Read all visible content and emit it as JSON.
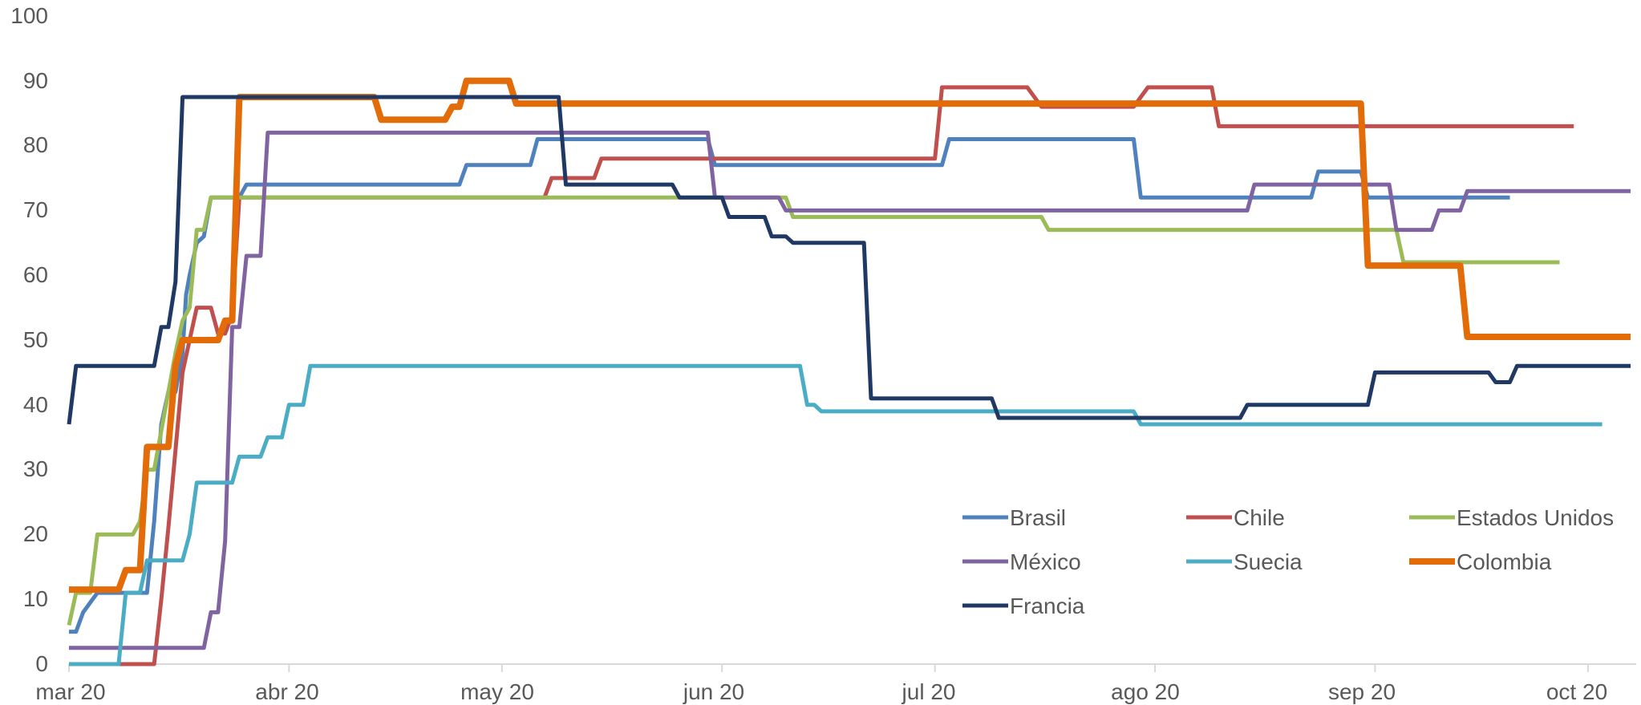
{
  "chart_data": {
    "type": "line",
    "title": "",
    "xlabel": "",
    "ylabel": "",
    "ylim": [
      0,
      100
    ],
    "yticks": [
      "0",
      "10",
      "20",
      "30",
      "40",
      "50",
      "60",
      "70",
      "80",
      "90",
      "100"
    ],
    "xticks": [
      "mar 20",
      "abr 20",
      "may 20",
      "jun 20",
      "jul 20",
      "ago 20",
      "sep 20",
      "oct 20"
    ],
    "xtick_days": [
      0,
      31,
      61,
      92,
      122,
      153,
      184,
      214
    ],
    "x_unit": "days since 2020-03-01",
    "grid": false,
    "legend_position": "lower-right",
    "series": [
      {
        "name": "Brasil",
        "color": "#4F81BD",
        "width": 5,
        "points": [
          [
            0,
            5
          ],
          [
            1,
            5
          ],
          [
            2,
            8
          ],
          [
            4,
            11
          ],
          [
            9,
            11
          ],
          [
            11,
            11
          ],
          [
            12,
            22
          ],
          [
            13,
            37
          ],
          [
            14,
            42
          ],
          [
            15,
            42
          ],
          [
            16,
            48
          ],
          [
            16.5,
            57
          ],
          [
            17,
            60
          ],
          [
            18,
            65
          ],
          [
            19,
            66
          ],
          [
            20,
            72
          ],
          [
            24,
            72
          ],
          [
            25,
            74
          ],
          [
            40,
            74
          ],
          [
            55,
            74
          ],
          [
            56,
            77
          ],
          [
            60,
            77
          ],
          [
            61,
            77
          ],
          [
            65,
            77
          ],
          [
            66,
            81
          ],
          [
            80,
            81
          ],
          [
            90,
            81
          ],
          [
            91,
            77
          ],
          [
            100,
            77
          ],
          [
            120,
            77
          ],
          [
            123,
            77
          ],
          [
            124,
            81
          ],
          [
            150,
            81
          ],
          [
            151,
            72
          ],
          [
            170,
            72
          ],
          [
            175,
            72
          ],
          [
            176,
            76
          ],
          [
            180,
            76
          ],
          [
            182,
            76
          ],
          [
            183,
            72
          ],
          [
            195,
            72
          ],
          [
            203,
            72
          ]
        ]
      },
      {
        "name": "Chile",
        "color": "#C0504D",
        "width": 5,
        "points": [
          [
            0,
            0
          ],
          [
            12,
            0
          ],
          [
            13,
            10
          ],
          [
            14,
            21
          ],
          [
            15,
            33
          ],
          [
            16,
            45
          ],
          [
            17,
            50
          ],
          [
            18,
            55
          ],
          [
            20,
            55
          ],
          [
            21,
            51
          ],
          [
            22,
            51
          ],
          [
            23,
            54
          ],
          [
            24,
            72
          ],
          [
            25,
            72
          ],
          [
            60,
            72
          ],
          [
            67,
            72
          ],
          [
            68,
            75
          ],
          [
            74,
            75
          ],
          [
            75,
            78
          ],
          [
            100,
            78
          ],
          [
            122,
            78
          ],
          [
            123,
            89
          ],
          [
            135,
            89
          ],
          [
            137,
            86
          ],
          [
            150,
            86
          ],
          [
            152,
            89
          ],
          [
            161,
            89
          ],
          [
            162,
            83
          ],
          [
            200,
            83
          ],
          [
            212,
            83
          ]
        ]
      },
      {
        "name": "Estados Unidos",
        "color": "#9BBB59",
        "width": 5,
        "points": [
          [
            0,
            6
          ],
          [
            1,
            11
          ],
          [
            3,
            11
          ],
          [
            4,
            20
          ],
          [
            9,
            20
          ],
          [
            10,
            22
          ],
          [
            11,
            30
          ],
          [
            12,
            30
          ],
          [
            13,
            36
          ],
          [
            15,
            48
          ],
          [
            16,
            53
          ],
          [
            17,
            55
          ],
          [
            18,
            67
          ],
          [
            19,
            67
          ],
          [
            20,
            72
          ],
          [
            25,
            72
          ],
          [
            60,
            72
          ],
          [
            90,
            72
          ],
          [
            100,
            72
          ],
          [
            101,
            72
          ],
          [
            102,
            69
          ],
          [
            120,
            69
          ],
          [
            125,
            69
          ],
          [
            137,
            69
          ],
          [
            138,
            67
          ],
          [
            160,
            67
          ],
          [
            180,
            67
          ],
          [
            187,
            67
          ],
          [
            188,
            62
          ],
          [
            200,
            62
          ],
          [
            210,
            62
          ]
        ]
      },
      {
        "name": "México",
        "color": "#8064A2",
        "width": 5,
        "points": [
          [
            0,
            2.5
          ],
          [
            19,
            2.5
          ],
          [
            20,
            8
          ],
          [
            21,
            8
          ],
          [
            22,
            19
          ],
          [
            23,
            52
          ],
          [
            24,
            52
          ],
          [
            25,
            63
          ],
          [
            27,
            63
          ],
          [
            28,
            82
          ],
          [
            29,
            82
          ],
          [
            60,
            82
          ],
          [
            90,
            82
          ],
          [
            91,
            72
          ],
          [
            100,
            72
          ],
          [
            101,
            70
          ],
          [
            120,
            70
          ],
          [
            150,
            70
          ],
          [
            166,
            70
          ],
          [
            167,
            74
          ],
          [
            182,
            74
          ],
          [
            186,
            74
          ],
          [
            187,
            67
          ],
          [
            192,
            67
          ],
          [
            193,
            70
          ],
          [
            196,
            70
          ],
          [
            197,
            73
          ],
          [
            210,
            73
          ],
          [
            220,
            73
          ]
        ]
      },
      {
        "name": "Suecia",
        "color": "#4BACC6",
        "width": 5,
        "points": [
          [
            0,
            0
          ],
          [
            7,
            0
          ],
          [
            8,
            11
          ],
          [
            10,
            11
          ],
          [
            11,
            16
          ],
          [
            16,
            16
          ],
          [
            17,
            20
          ],
          [
            18,
            28
          ],
          [
            23,
            28
          ],
          [
            24,
            32
          ],
          [
            27,
            32
          ],
          [
            28,
            35
          ],
          [
            30,
            35
          ],
          [
            31,
            40
          ],
          [
            33,
            40
          ],
          [
            34,
            46
          ],
          [
            60,
            46
          ],
          [
            90,
            46
          ],
          [
            103,
            46
          ],
          [
            104,
            40
          ],
          [
            105,
            40
          ],
          [
            106,
            39
          ],
          [
            140,
            39
          ],
          [
            150,
            39
          ],
          [
            151,
            37
          ],
          [
            180,
            37
          ],
          [
            200,
            37
          ],
          [
            216,
            37
          ]
        ]
      },
      {
        "name": "Colombia",
        "color": "#E36C09",
        "width": 8,
        "points": [
          [
            0,
            11.5
          ],
          [
            7,
            11.5
          ],
          [
            8,
            14.5
          ],
          [
            10,
            14.5
          ],
          [
            11,
            33.5
          ],
          [
            14,
            33.5
          ],
          [
            15,
            46
          ],
          [
            16,
            50
          ],
          [
            21,
            50
          ],
          [
            22,
            53
          ],
          [
            23,
            53
          ],
          [
            24,
            87.5
          ],
          [
            43,
            87.5
          ],
          [
            44,
            84
          ],
          [
            53,
            84
          ],
          [
            54,
            86
          ],
          [
            55,
            86
          ],
          [
            56,
            90
          ],
          [
            62,
            90
          ],
          [
            63,
            86.5
          ],
          [
            100,
            86.5
          ],
          [
            122,
            86.5
          ],
          [
            150,
            86.5
          ],
          [
            182,
            86.5
          ],
          [
            183,
            61.5
          ],
          [
            196,
            61.5
          ],
          [
            197,
            50.5
          ],
          [
            220,
            50.5
          ]
        ]
      },
      {
        "name": "Francia",
        "color": "#1F3864",
        "width": 5,
        "points": [
          [
            0,
            37
          ],
          [
            1,
            46
          ],
          [
            2,
            46
          ],
          [
            12,
            46
          ],
          [
            13,
            52
          ],
          [
            14,
            52
          ],
          [
            15,
            59
          ],
          [
            16,
            87.5
          ],
          [
            40,
            87.5
          ],
          [
            69,
            87.5
          ],
          [
            70,
            74
          ],
          [
            79,
            74
          ],
          [
            80,
            74
          ],
          [
            85,
            74
          ],
          [
            86,
            72
          ],
          [
            92,
            72
          ],
          [
            93,
            69
          ],
          [
            98,
            69
          ],
          [
            99,
            66
          ],
          [
            101,
            66
          ],
          [
            102,
            65
          ],
          [
            112,
            65
          ],
          [
            113,
            41
          ],
          [
            130,
            41
          ],
          [
            131,
            38
          ],
          [
            160,
            38
          ],
          [
            165,
            38
          ],
          [
            166,
            40
          ],
          [
            183,
            40
          ],
          [
            184,
            45
          ],
          [
            200,
            45
          ],
          [
            201,
            43.5
          ],
          [
            203,
            43.5
          ],
          [
            204,
            46
          ],
          [
            220,
            46
          ]
        ]
      }
    ]
  }
}
